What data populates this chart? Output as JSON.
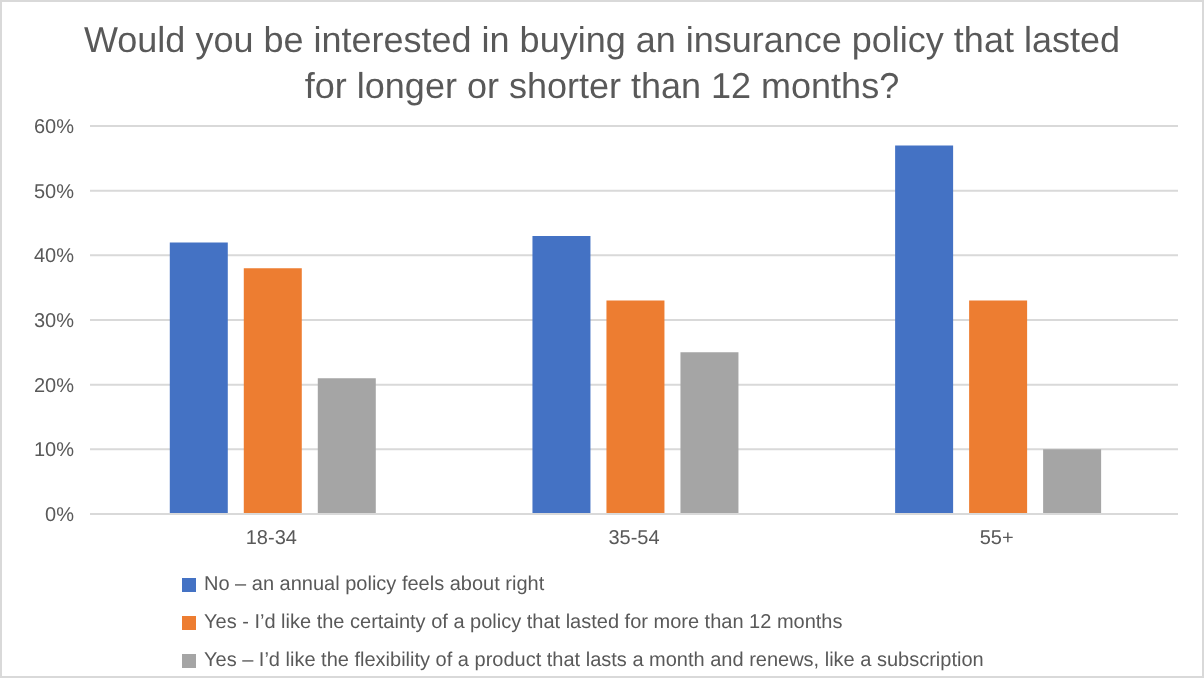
{
  "chart_data": {
    "type": "bar",
    "title": "Would you be interested in buying an insurance policy that lasted for longer or shorter than 12 months?",
    "categories": [
      "18-34",
      "35-54",
      "55+"
    ],
    "series": [
      {
        "name": "No – an annual policy feels about right",
        "color": "#4472c4",
        "values": [
          42,
          43,
          57
        ]
      },
      {
        "name": "Yes - I’d like the certainty of a policy that lasted for more than 12 months",
        "color": "#ed7d31",
        "values": [
          38,
          33,
          33
        ]
      },
      {
        "name": "Yes – I’d like the flexibility of a product that lasts a month and renews, like a subscription",
        "color": "#a5a5a5",
        "values": [
          21,
          25,
          10
        ]
      }
    ],
    "ylim": [
      0,
      60
    ],
    "yticks": [
      {
        "value": 0,
        "label": "0%"
      },
      {
        "value": 10,
        "label": "10%"
      },
      {
        "value": 20,
        "label": "20%"
      },
      {
        "value": 30,
        "label": "30%"
      },
      {
        "value": 40,
        "label": "40%"
      },
      {
        "value": 50,
        "label": "50%"
      },
      {
        "value": 60,
        "label": "60%"
      }
    ],
    "grid": "y",
    "legend": "bottom"
  }
}
